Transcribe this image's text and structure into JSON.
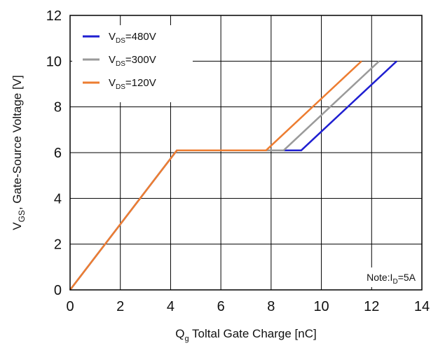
{
  "chart_data": {
    "type": "line",
    "xlabel": {
      "main": "Q",
      "sub": "g",
      "rest": " Toltal Gate Charge [nC]"
    },
    "ylabel": {
      "main": "V",
      "sub": "GS",
      "rest": ", Gate-Source Voltage [V]"
    },
    "xlim": [
      0,
      14
    ],
    "ylim": [
      0,
      12
    ],
    "x_ticks": [
      "0",
      "2",
      "4",
      "6",
      "8",
      "10",
      "12",
      "14"
    ],
    "y_ticks": [
      "0",
      "2",
      "4",
      "6",
      "8",
      "10",
      "12"
    ],
    "grid": true,
    "legend_position": "top-left",
    "note": {
      "prefix": "Note:I",
      "sub": "D",
      "suffix": "=5A"
    },
    "series": [
      {
        "legend": {
          "main": "V",
          "sub": "DS",
          "rest": "=480V"
        },
        "color": "#1f1fd1",
        "x": [
          0,
          4.25,
          9.2,
          13.0
        ],
        "y": [
          0,
          6.1,
          6.1,
          10.0
        ]
      },
      {
        "legend": {
          "main": "V",
          "sub": "DS",
          "rest": "=300V"
        },
        "color": "#9a9a9a",
        "x": [
          0,
          4.25,
          8.5,
          12.3
        ],
        "y": [
          0,
          6.1,
          6.1,
          10.0
        ]
      },
      {
        "legend": {
          "main": "V",
          "sub": "DS",
          "rest": "=120V"
        },
        "color": "#ed7d31",
        "x": [
          0,
          4.25,
          7.8,
          11.6
        ],
        "y": [
          0,
          6.1,
          6.1,
          10.0
        ]
      }
    ]
  }
}
